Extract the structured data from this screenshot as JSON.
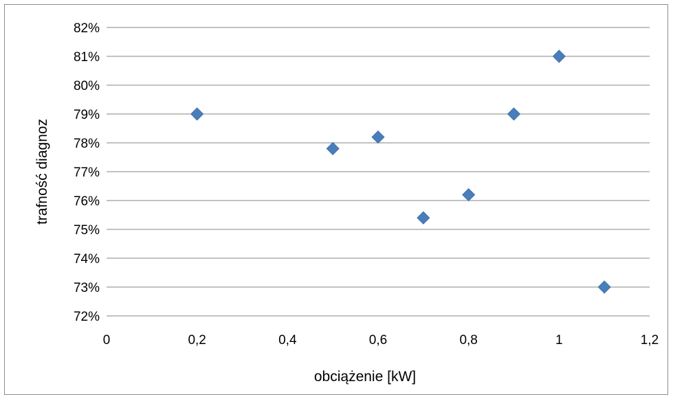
{
  "chart_data": {
    "type": "scatter",
    "title": "",
    "xlabel": "obciążenie [kW]",
    "ylabel": "trafność diagnoz",
    "xlim": [
      0,
      1.2
    ],
    "ylim": [
      0.72,
      0.82
    ],
    "x_ticks": [
      "0",
      "0,2",
      "0,4",
      "0,6",
      "0,8",
      "1",
      "1,2"
    ],
    "y_ticks": [
      "72%",
      "73%",
      "74%",
      "75%",
      "76%",
      "77%",
      "78%",
      "79%",
      "80%",
      "81%",
      "82%"
    ],
    "grid": "horizontal",
    "legend": "none",
    "marker": "diamond",
    "colors": {
      "marker": "#4a7ebb",
      "grid": "#868686",
      "frame": "#8c8c8c"
    },
    "series": [
      {
        "x": [
          0.2,
          0.5,
          0.6,
          0.7,
          0.8,
          0.9,
          1.0,
          1.1
        ],
        "y": [
          0.79,
          0.778,
          0.782,
          0.754,
          0.762,
          0.79,
          0.81,
          0.73
        ]
      }
    ]
  }
}
